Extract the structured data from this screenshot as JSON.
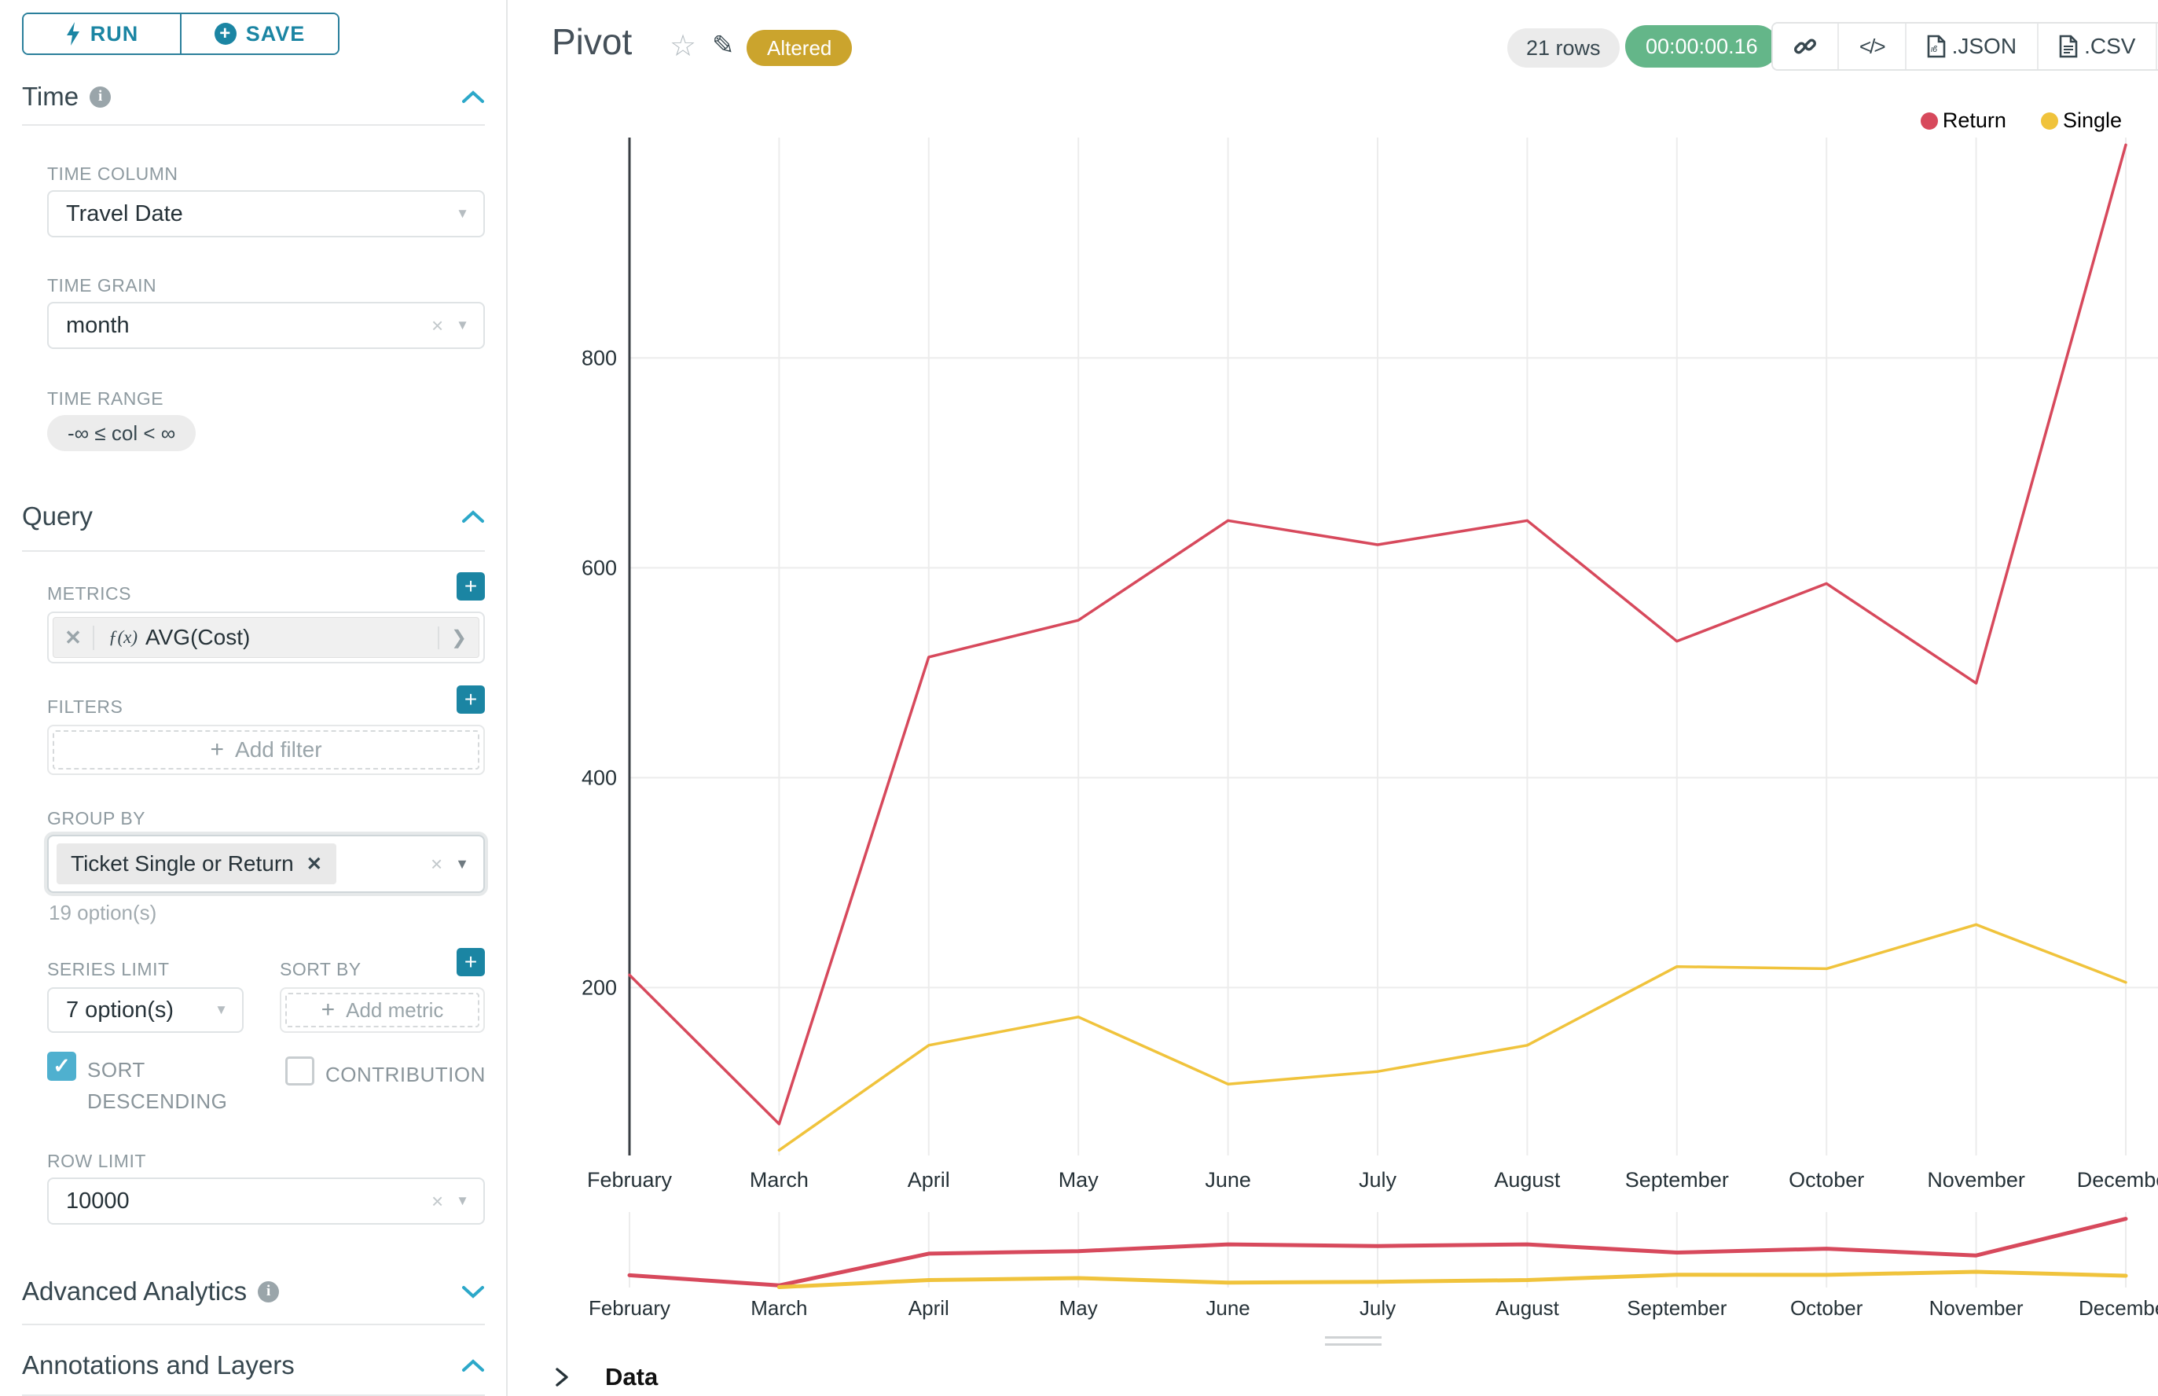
{
  "toolbar": {
    "run": "RUN",
    "save": "SAVE"
  },
  "icons": {
    "plus": "+",
    "close": "×",
    "close_bold": "✕",
    "caret": "▼",
    "star": "☆",
    "pencil": "✎",
    "check": "✓",
    "chevron_right": "❯",
    "menu": "≡",
    "code": "</>",
    "info": "i",
    "fx": "ƒ(x)",
    "data_chevron": "❯"
  },
  "panel": {
    "time": {
      "title": "Time",
      "column_label": "TIME COLUMN",
      "column_value": "Travel Date",
      "grain_label": "TIME GRAIN",
      "grain_value": "month",
      "range_label": "TIME RANGE",
      "range_value": "-∞ ≤ col < ∞"
    },
    "query": {
      "title": "Query",
      "metrics_label": "METRICS",
      "metric_value": "AVG(Cost)",
      "filters_label": "FILTERS",
      "add_filter": "Add filter",
      "groupby_label": "GROUP BY",
      "groupby_tag": "Ticket Single or Return",
      "groupby_hint": "19 option(s)",
      "series_limit_label": "SERIES LIMIT",
      "series_limit_value": "7 option(s)",
      "sort_by_label": "SORT BY",
      "add_metric": "Add metric",
      "sort_descending_label": "SORT DESCENDING",
      "contribution_label": "CONTRIBUTION",
      "row_limit_label": "ROW LIMIT",
      "row_limit_value": "10000"
    },
    "advanced": {
      "title": "Advanced Analytics"
    },
    "annotations": {
      "title": "Annotations and Layers"
    }
  },
  "header": {
    "title": "Pivot",
    "altered_badge": "Altered",
    "rows_badge": "21 rows",
    "timer_badge": "00:00:00.16",
    "json_button": ".JSON",
    "csv_button": ".CSV"
  },
  "data_panel": {
    "title": "Data"
  },
  "chart_data": {
    "type": "line",
    "title": "Pivot",
    "categories": [
      "February",
      "March",
      "April",
      "May",
      "June",
      "July",
      "August",
      "September",
      "October",
      "November",
      "December"
    ],
    "series": [
      {
        "name": "Return",
        "color": "#d7495c",
        "values": [
          212,
          70,
          515,
          550,
          645,
          622,
          645,
          530,
          585,
          490,
          1003
        ]
      },
      {
        "name": "Single",
        "color": "#f0c33c",
        "values": [
          null,
          45,
          145,
          172,
          108,
          120,
          145,
          220,
          218,
          260,
          205
        ]
      }
    ],
    "xlabel": "",
    "ylabel": "",
    "ylim": [
      40,
      1010
    ],
    "yticks": [
      200,
      400,
      600,
      800
    ],
    "grid": true,
    "legend_position": "top-right",
    "has_range_selector": true
  }
}
